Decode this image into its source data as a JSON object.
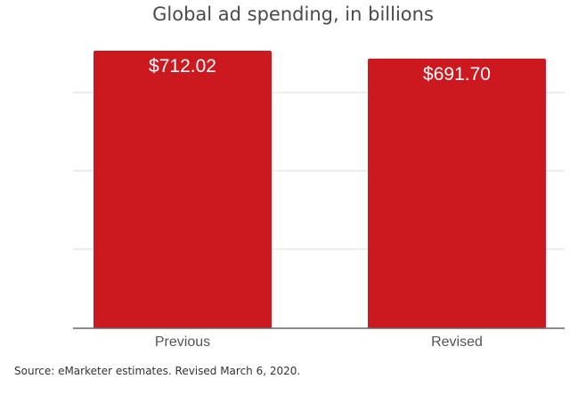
{
  "chart_data": {
    "type": "bar",
    "title": "Global ad spending, in billions",
    "categories": [
      "Previous",
      "Revised"
    ],
    "values": [
      712.02,
      691.7
    ],
    "data_labels": [
      "$712.02",
      "$691.70"
    ],
    "bar_color": "#cc1920",
    "ylim": [
      0,
      712.02
    ],
    "grid": true,
    "legend": "none"
  },
  "source": "Source: eMarketer estimates. Revised March 6, 2020."
}
